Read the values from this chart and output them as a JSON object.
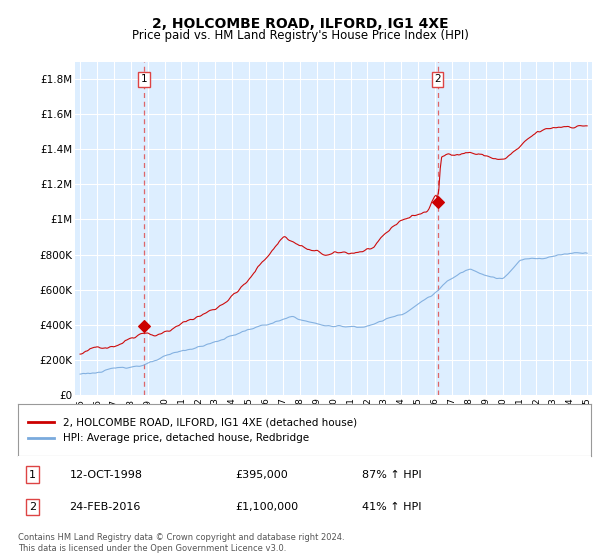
{
  "title": "2, HOLCOMBE ROAD, ILFORD, IG1 4XE",
  "subtitle": "Price paid vs. HM Land Registry's House Price Index (HPI)",
  "ylim": [
    0,
    1900000
  ],
  "yticks": [
    0,
    200000,
    400000,
    600000,
    800000,
    1000000,
    1200000,
    1400000,
    1600000,
    1800000
  ],
  "ytick_labels": [
    "£0",
    "£200K",
    "£400K",
    "£600K",
    "£800K",
    "£1M",
    "£1.2M",
    "£1.4M",
    "£1.6M",
    "£1.8M"
  ],
  "sale1_year": 1998.79,
  "sale1_price": 395000,
  "sale2_year": 2016.15,
  "sale2_price": 1100000,
  "legend_line1": "2, HOLCOMBE ROAD, ILFORD, IG1 4XE (detached house)",
  "legend_line2": "HPI: Average price, detached house, Redbridge",
  "table_row1": [
    "1",
    "12-OCT-1998",
    "£395,000",
    "87% ↑ HPI"
  ],
  "table_row2": [
    "2",
    "24-FEB-2016",
    "£1,100,000",
    "41% ↑ HPI"
  ],
  "footnote": "Contains HM Land Registry data © Crown copyright and database right 2024.\nThis data is licensed under the Open Government Licence v3.0.",
  "line_color_red": "#cc0000",
  "line_color_blue": "#7aaadd",
  "vline_color": "#dd4444",
  "bg_chart": "#ddeeff",
  "grid_color": "#ffffff",
  "grid_color2": "#cccccc"
}
